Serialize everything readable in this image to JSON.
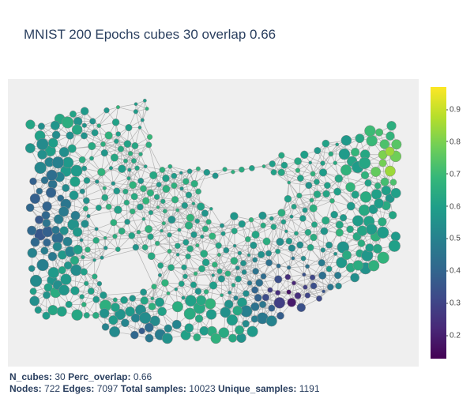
{
  "title": "MNIST 200 Epochs cubes 30 overlap 0.66",
  "colorscale": {
    "name": "viridis",
    "stops": [
      "#440154",
      "#482878",
      "#3e4989",
      "#31688e",
      "#26828e",
      "#1f9e89",
      "#35b779",
      "#6ece58",
      "#b5de2b",
      "#fde725"
    ]
  },
  "colorbar": {
    "min": 0.13,
    "max": 0.97,
    "ticks": [
      "0.2",
      "0.3",
      "0.4",
      "0.5",
      "0.6",
      "0.7",
      "0.8",
      "0.9"
    ]
  },
  "colors": {
    "background": "#efefef",
    "edge": "#b3b3b3",
    "node_outline": "#888888"
  },
  "stats": {
    "n_cubes_label": "N_cubes:",
    "n_cubes": "30",
    "perc_overlap_label": "Perc_overlap:",
    "perc_overlap": "0.66",
    "nodes_label": "Nodes:",
    "nodes": "722",
    "edges_label": "Edges:",
    "edges": "7097",
    "total_samples_label": "Total samples:",
    "total_samples": "10023",
    "unique_samples_label": "Unique_samples:",
    "unique_samples": "1191"
  },
  "chart_data": {
    "type": "scatter",
    "subtype": "mapper-network-graph",
    "title": "MNIST 200 Epochs cubes 30 overlap 0.66",
    "node_count": 722,
    "edge_count": 7097,
    "color_range": [
      0.13,
      0.97
    ],
    "colorbar_ticks": [
      0.2,
      0.3,
      0.4,
      0.5,
      0.6,
      0.7,
      0.8,
      0.9
    ],
    "legend": "colorbar-right",
    "grid": false
  }
}
